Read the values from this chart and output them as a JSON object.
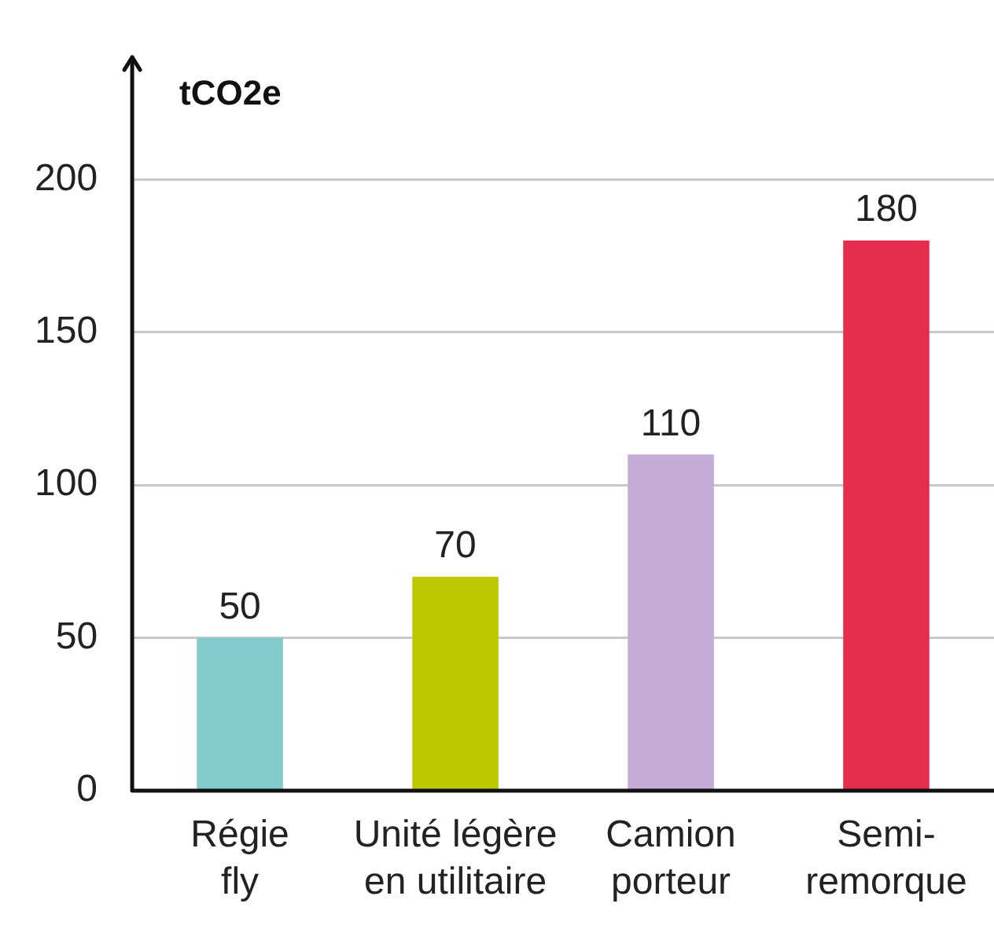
{
  "chart_data": {
    "type": "bar",
    "ylabel": "tCO2e",
    "categories": [
      "Régie fly",
      "Unité légère en utilitaire",
      "Camion porteur",
      "Semi-remorque"
    ],
    "values": [
      50,
      70,
      110,
      180
    ],
    "colors": [
      "#82cbcc",
      "#bcc800",
      "#c3acd6",
      "#e52e4d"
    ],
    "ylim": [
      0,
      240
    ],
    "yticks": [
      0,
      50,
      100,
      150,
      200
    ],
    "grid": "y",
    "legend": false,
    "data_labels": true
  }
}
